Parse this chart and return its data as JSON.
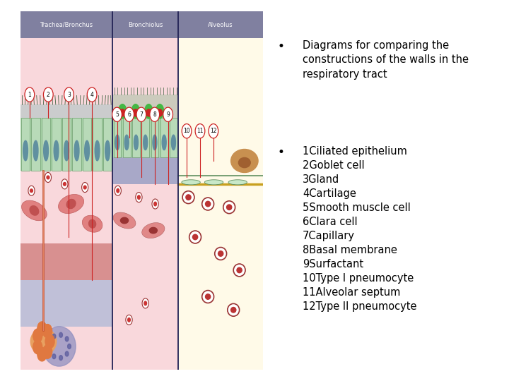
{
  "background_color": "#ffffff",
  "bullet1": "Diagrams for comparing the\nconstructions of the walls in the\nrespiratory tract",
  "bullet2_lines": [
    "1Ciliated epithelium",
    "2Goblet cell",
    "3Gland",
    "4Cartilage",
    "5Smooth muscle cell",
    "6Clara cell",
    "7Capillary",
    "8Basal membrane",
    "9Surfactant",
    "10Type I pneumocyte",
    "11Alveolar septum",
    "12Type II pneumocyte"
  ],
  "font_size": 10.5,
  "text_color": "#000000",
  "sections": [
    "Trachea/Bronchus",
    "Bronchiolus",
    "Alveolus"
  ],
  "header_color": "#8080a0",
  "section_splits": [
    0.38,
    0.65
  ],
  "diagram_border": "#aaaaaa",
  "font_family": "DejaVu Sans"
}
